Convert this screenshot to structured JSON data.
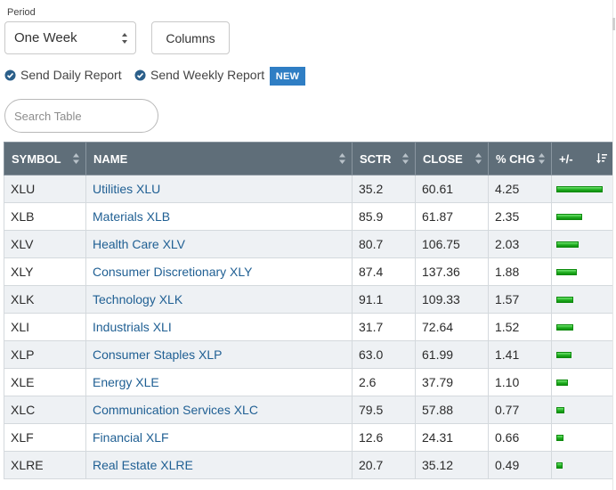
{
  "period": {
    "label": "Period",
    "selected": "One Week"
  },
  "columns_button": "Columns",
  "reports": {
    "daily": "Send Daily Report",
    "weekly": "Send Weekly Report",
    "badge": "NEW"
  },
  "search": {
    "placeholder": "Search Table",
    "value": ""
  },
  "colors": {
    "header_bg": "#5f6e79",
    "link": "#1f5f93",
    "badge": "#2f7ec4",
    "bar": "#1cab1c"
  },
  "table": {
    "headers": {
      "symbol": "SYMBOL",
      "name": "NAME",
      "sctr": "SCTR",
      "close": "CLOSE",
      "chg": "% CHG",
      "plusminus": "+/-"
    },
    "rows": [
      {
        "symbol": "XLU",
        "name": "Utilities XLU",
        "sctr": "35.2",
        "close": "60.61",
        "chg": "4.25"
      },
      {
        "symbol": "XLB",
        "name": "Materials XLB",
        "sctr": "85.9",
        "close": "61.87",
        "chg": "2.35"
      },
      {
        "symbol": "XLV",
        "name": "Health Care XLV",
        "sctr": "80.7",
        "close": "106.75",
        "chg": "2.03"
      },
      {
        "symbol": "XLY",
        "name": "Consumer Discretionary XLY",
        "sctr": "87.4",
        "close": "137.36",
        "chg": "1.88"
      },
      {
        "symbol": "XLK",
        "name": "Technology XLK",
        "sctr": "91.1",
        "close": "109.33",
        "chg": "1.57"
      },
      {
        "symbol": "XLI",
        "name": "Industrials XLI",
        "sctr": "31.7",
        "close": "72.64",
        "chg": "1.52"
      },
      {
        "symbol": "XLP",
        "name": "Consumer Staples XLP",
        "sctr": "63.0",
        "close": "61.99",
        "chg": "1.41"
      },
      {
        "symbol": "XLE",
        "name": "Energy XLE",
        "sctr": "2.6",
        "close": "37.79",
        "chg": "1.10"
      },
      {
        "symbol": "XLC",
        "name": "Communication Services XLC",
        "sctr": "79.5",
        "close": "57.88",
        "chg": "0.77"
      },
      {
        "symbol": "XLF",
        "name": "Financial XLF",
        "sctr": "12.6",
        "close": "24.31",
        "chg": "0.66"
      },
      {
        "symbol": "XLRE",
        "name": "Real Estate XLRE",
        "sctr": "20.7",
        "close": "35.12",
        "chg": "0.49"
      }
    ]
  }
}
